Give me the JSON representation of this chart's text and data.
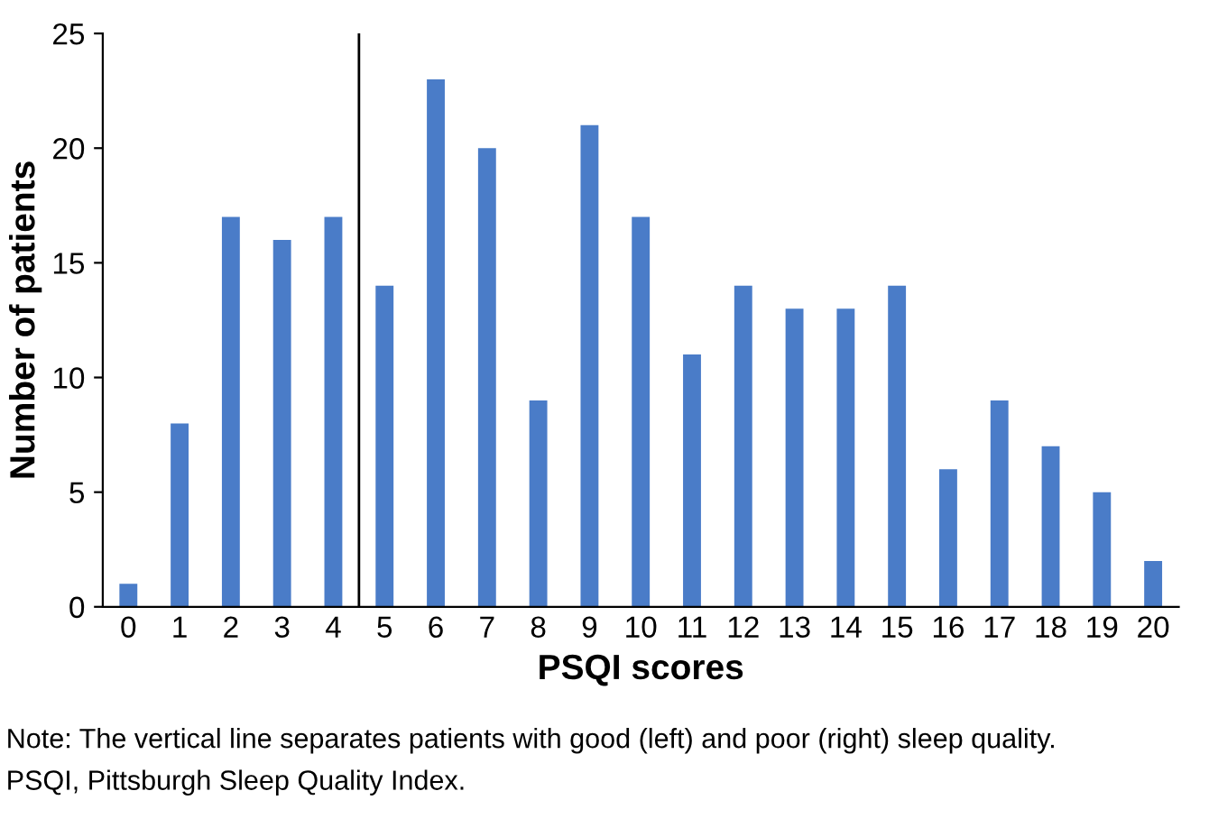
{
  "chart_data": {
    "type": "bar",
    "xlabel": "PSQI scores",
    "ylabel": "Number of patients",
    "categories": [
      "0",
      "1",
      "2",
      "3",
      "4",
      "5",
      "6",
      "7",
      "8",
      "9",
      "10",
      "11",
      "12",
      "13",
      "14",
      "15",
      "16",
      "17",
      "18",
      "19",
      "20"
    ],
    "values": [
      1,
      8,
      17,
      16,
      17,
      14,
      23,
      20,
      9,
      21,
      17,
      11,
      14,
      13,
      13,
      14,
      6,
      9,
      7,
      5,
      2
    ],
    "color": "#4a7cc8",
    "ylim": [
      0,
      25
    ],
    "yticks": [
      0,
      5,
      10,
      15,
      20,
      25
    ],
    "grid": false,
    "legend": false,
    "annotations": [
      "Note: The vertical line separates patients with good (left) and poor (right) sleep quality.",
      "PSQI, Pittsburgh Sleep Quality Index."
    ]
  }
}
